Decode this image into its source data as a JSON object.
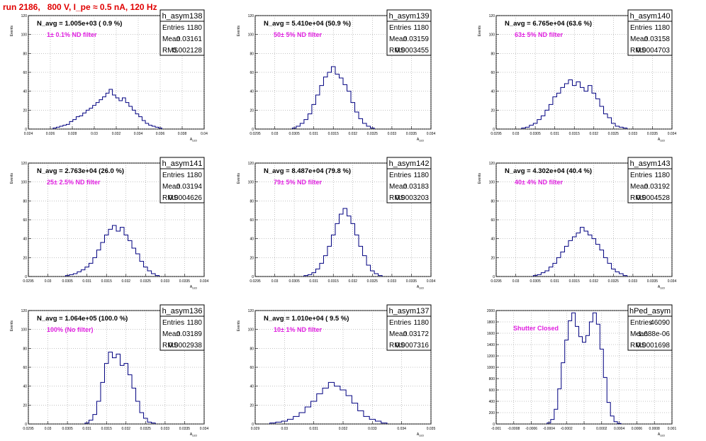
{
  "page": {
    "title": "run 2186,   800 V, I_pe ≈ 0.5 nA, 120 Hz"
  },
  "chart_data": [
    {
      "type": "histogram",
      "name": "h_asym138",
      "navg": "N_avg = 1.005e+03 ( 0.9 %)",
      "note": "1± 0.1% ND filter",
      "xlabel": "A_LED",
      "ylabel": "Events",
      "xlim": [
        0.024,
        0.04
      ],
      "ylim": [
        0,
        120
      ],
      "grid": true,
      "xticks": [
        "0.024",
        "0.026",
        "0.028",
        "0.03",
        "0.032",
        "0.034",
        "0.036",
        "0.038",
        "0.04"
      ],
      "yticks": [
        "0",
        "20",
        "40",
        "60",
        "80",
        "100",
        "120"
      ],
      "stats": {
        "Entries": "1180",
        "Mean": "0.03161",
        "RMS": "0.002128"
      },
      "bins": [
        [
          0.0264,
          1
        ],
        [
          0.0267,
          2
        ],
        [
          0.027,
          3
        ],
        [
          0.0273,
          4
        ],
        [
          0.0276,
          5
        ],
        [
          0.0279,
          8
        ],
        [
          0.0282,
          10
        ],
        [
          0.0285,
          13
        ],
        [
          0.0288,
          14
        ],
        [
          0.0291,
          17
        ],
        [
          0.0294,
          20
        ],
        [
          0.0297,
          22
        ],
        [
          0.03,
          25
        ],
        [
          0.0303,
          28
        ],
        [
          0.0306,
          31
        ],
        [
          0.0309,
          34
        ],
        [
          0.0312,
          38
        ],
        [
          0.0315,
          42
        ],
        [
          0.0318,
          36
        ],
        [
          0.0321,
          33
        ],
        [
          0.0324,
          30
        ],
        [
          0.0327,
          33
        ],
        [
          0.033,
          28
        ],
        [
          0.0333,
          24
        ],
        [
          0.0336,
          20
        ],
        [
          0.0339,
          16
        ],
        [
          0.0342,
          13
        ],
        [
          0.0345,
          9
        ],
        [
          0.0348,
          6
        ],
        [
          0.0351,
          4
        ],
        [
          0.0354,
          3
        ],
        [
          0.0357,
          2
        ],
        [
          0.036,
          1
        ]
      ]
    },
    {
      "type": "histogram",
      "name": "h_asym139",
      "navg": "N_avg = 5.410e+04 (50.9 %)",
      "note": "50± 5% ND filter",
      "xlabel": "A_LED",
      "ylabel": "Events",
      "xlim": [
        0.0295,
        0.034
      ],
      "ylim": [
        0,
        120
      ],
      "grid": true,
      "xticks": [
        "0.0295",
        "0.03",
        "0.0305",
        "0.031",
        "0.0315",
        "0.032",
        "0.0325",
        "0.033",
        "0.0335",
        "0.034"
      ],
      "yticks": [
        "0",
        "20",
        "40",
        "60",
        "80",
        "100",
        "120"
      ],
      "stats": {
        "Entries": "1180",
        "Mean": "0.03159",
        "RMS": "0.0003455"
      },
      "bins": [
        [
          0.0305,
          1
        ],
        [
          0.0306,
          3
        ],
        [
          0.0307,
          6
        ],
        [
          0.0308,
          10
        ],
        [
          0.0309,
          16
        ],
        [
          0.031,
          26
        ],
        [
          0.0311,
          36
        ],
        [
          0.0312,
          46
        ],
        [
          0.0313,
          55
        ],
        [
          0.0314,
          60
        ],
        [
          0.0315,
          66
        ],
        [
          0.0316,
          58
        ],
        [
          0.0317,
          54
        ],
        [
          0.0318,
          47
        ],
        [
          0.0319,
          40
        ],
        [
          0.032,
          28
        ],
        [
          0.0321,
          18
        ],
        [
          0.0322,
          11
        ],
        [
          0.0323,
          6
        ],
        [
          0.0324,
          3
        ],
        [
          0.0325,
          1
        ]
      ]
    },
    {
      "type": "histogram",
      "name": "h_asym140",
      "navg": "N_avg = 6.765e+04 (63.6 %)",
      "note": "63± 5% ND filter",
      "xlabel": "A_LED",
      "ylabel": "Events",
      "xlim": [
        0.0295,
        0.034
      ],
      "ylim": [
        0,
        120
      ],
      "grid": true,
      "xticks": [
        "0.0295",
        "0.03",
        "0.0305",
        "0.031",
        "0.0315",
        "0.032",
        "0.0325",
        "0.033",
        "0.0335",
        "0.034"
      ],
      "yticks": [
        "0",
        "20",
        "40",
        "60",
        "80",
        "100",
        "120"
      ],
      "stats": {
        "Entries": "1180",
        "Mean": "0.03158",
        "RMS": "0.0004703"
      },
      "bins": [
        [
          0.0302,
          1
        ],
        [
          0.0303,
          2
        ],
        [
          0.0304,
          4
        ],
        [
          0.0305,
          6
        ],
        [
          0.0306,
          10
        ],
        [
          0.0307,
          14
        ],
        [
          0.0308,
          20
        ],
        [
          0.0309,
          26
        ],
        [
          0.031,
          34
        ],
        [
          0.0311,
          38
        ],
        [
          0.0312,
          44
        ],
        [
          0.0313,
          48
        ],
        [
          0.0314,
          52
        ],
        [
          0.0315,
          46
        ],
        [
          0.0316,
          50
        ],
        [
          0.0317,
          44
        ],
        [
          0.0318,
          40
        ],
        [
          0.0319,
          46
        ],
        [
          0.032,
          38
        ],
        [
          0.0321,
          32
        ],
        [
          0.0322,
          24
        ],
        [
          0.0323,
          16
        ],
        [
          0.0324,
          12
        ],
        [
          0.0325,
          6
        ],
        [
          0.0326,
          3
        ],
        [
          0.0327,
          2
        ],
        [
          0.0328,
          1
        ]
      ]
    },
    {
      "type": "histogram",
      "name": "h_asym141",
      "navg": "N_avg = 2.763e+04 (26.0 %)",
      "note": "25± 2.5% ND filter",
      "xlabel": "A_LED",
      "ylabel": "Events",
      "xlim": [
        0.0295,
        0.034
      ],
      "ylim": [
        0,
        120
      ],
      "grid": true,
      "xticks": [
        "0.0295",
        "0.03",
        "0.0305",
        "0.031",
        "0.0315",
        "0.032",
        "0.0325",
        "0.033",
        "0.0335",
        "0.034"
      ],
      "yticks": [
        "0",
        "20",
        "40",
        "60",
        "80",
        "100",
        "120"
      ],
      "stats": {
        "Entries": "1180",
        "Mean": "0.03194",
        "RMS": "0.0004626"
      },
      "bins": [
        [
          0.0305,
          1
        ],
        [
          0.0306,
          2
        ],
        [
          0.0307,
          3
        ],
        [
          0.0308,
          5
        ],
        [
          0.0309,
          7
        ],
        [
          0.031,
          10
        ],
        [
          0.0311,
          14
        ],
        [
          0.0312,
          20
        ],
        [
          0.0313,
          28
        ],
        [
          0.0314,
          36
        ],
        [
          0.0315,
          44
        ],
        [
          0.0316,
          50
        ],
        [
          0.0317,
          54
        ],
        [
          0.0318,
          48
        ],
        [
          0.0319,
          52
        ],
        [
          0.032,
          44
        ],
        [
          0.0321,
          38
        ],
        [
          0.0322,
          30
        ],
        [
          0.0323,
          24
        ],
        [
          0.0324,
          16
        ],
        [
          0.0325,
          10
        ],
        [
          0.0326,
          6
        ],
        [
          0.0327,
          3
        ],
        [
          0.0328,
          1
        ]
      ]
    },
    {
      "type": "histogram",
      "name": "h_asym142",
      "navg": "N_avg = 8.487e+04 (79.8 %)",
      "note": "79± 5% ND filter",
      "xlabel": "A_LED",
      "ylabel": "Events",
      "xlim": [
        0.0295,
        0.034
      ],
      "ylim": [
        0,
        120
      ],
      "grid": true,
      "xticks": [
        "0.0295",
        "0.03",
        "0.0305",
        "0.031",
        "0.0315",
        "0.032",
        "0.0325",
        "0.033",
        "0.0335",
        "0.034"
      ],
      "yticks": [
        "0",
        "20",
        "40",
        "60",
        "80",
        "100",
        "120"
      ],
      "stats": {
        "Entries": "1180",
        "Mean": "0.03183",
        "RMS": "0.0003203"
      },
      "bins": [
        [
          0.0308,
          1
        ],
        [
          0.0309,
          2
        ],
        [
          0.031,
          4
        ],
        [
          0.0311,
          8
        ],
        [
          0.0312,
          14
        ],
        [
          0.0313,
          22
        ],
        [
          0.0314,
          32
        ],
        [
          0.0315,
          44
        ],
        [
          0.0316,
          56
        ],
        [
          0.0317,
          66
        ],
        [
          0.0318,
          72
        ],
        [
          0.0319,
          64
        ],
        [
          0.032,
          56
        ],
        [
          0.0321,
          44
        ],
        [
          0.0322,
          32
        ],
        [
          0.0323,
          22
        ],
        [
          0.0324,
          12
        ],
        [
          0.0325,
          6
        ],
        [
          0.0326,
          3
        ],
        [
          0.0327,
          1
        ]
      ]
    },
    {
      "type": "histogram",
      "name": "h_asym143",
      "navg": "N_avg = 4.302e+04 (40.4 %)",
      "note": "40± 4% ND filter",
      "xlabel": "A_LED",
      "ylabel": "Events",
      "xlim": [
        0.0295,
        0.034
      ],
      "ylim": [
        0,
        120
      ],
      "grid": true,
      "xticks": [
        "0.0295",
        "0.03",
        "0.0305",
        "0.031",
        "0.0315",
        "0.032",
        "0.0325",
        "0.033",
        "0.0335",
        "0.034"
      ],
      "yticks": [
        "0",
        "20",
        "40",
        "60",
        "80",
        "100",
        "120"
      ],
      "stats": {
        "Entries": "1180",
        "Mean": "0.03192",
        "RMS": "0.0004528"
      },
      "bins": [
        [
          0.0305,
          1
        ],
        [
          0.0306,
          2
        ],
        [
          0.0307,
          4
        ],
        [
          0.0308,
          6
        ],
        [
          0.0309,
          10
        ],
        [
          0.031,
          14
        ],
        [
          0.0311,
          20
        ],
        [
          0.0312,
          26
        ],
        [
          0.0313,
          32
        ],
        [
          0.0314,
          38
        ],
        [
          0.0315,
          42
        ],
        [
          0.0316,
          46
        ],
        [
          0.0317,
          52
        ],
        [
          0.0318,
          48
        ],
        [
          0.0319,
          44
        ],
        [
          0.032,
          40
        ],
        [
          0.0321,
          34
        ],
        [
          0.0322,
          28
        ],
        [
          0.0323,
          20
        ],
        [
          0.0324,
          14
        ],
        [
          0.0325,
          8
        ],
        [
          0.0326,
          5
        ],
        [
          0.0327,
          3
        ],
        [
          0.0328,
          1
        ]
      ]
    },
    {
      "type": "histogram",
      "name": "h_asym136",
      "navg": "N_avg = 1.064e+05 (100.0 %)",
      "note": "100% (No filter)",
      "xlabel": "A_LED",
      "ylabel": "Events",
      "xlim": [
        0.0295,
        0.034
      ],
      "ylim": [
        0,
        120
      ],
      "grid": true,
      "xticks": [
        "0.0295",
        "0.03",
        "0.0305",
        "0.031",
        "0.0315",
        "0.032",
        "0.0325",
        "0.033",
        "0.0335",
        "0.034"
      ],
      "yticks": [
        "0",
        "20",
        "40",
        "60",
        "80",
        "100",
        "120"
      ],
      "stats": {
        "Entries": "1180",
        "Mean": "0.03189",
        "RMS": "0.0002938"
      },
      "bins": [
        [
          0.031,
          1
        ],
        [
          0.0311,
          4
        ],
        [
          0.0312,
          10
        ],
        [
          0.0313,
          24
        ],
        [
          0.0314,
          44
        ],
        [
          0.0315,
          64
        ],
        [
          0.0316,
          76
        ],
        [
          0.0317,
          70
        ],
        [
          0.0318,
          74
        ],
        [
          0.0319,
          62
        ],
        [
          0.032,
          64
        ],
        [
          0.0321,
          52
        ],
        [
          0.0322,
          38
        ],
        [
          0.0323,
          24
        ],
        [
          0.0324,
          12
        ],
        [
          0.0325,
          6
        ],
        [
          0.0326,
          2
        ],
        [
          0.0327,
          1
        ]
      ]
    },
    {
      "type": "histogram",
      "name": "h_asym137",
      "navg": "N_avg = 1.010e+04 ( 9.5 %)",
      "note": "10± 1% ND filter",
      "xlabel": "A_LED",
      "ylabel": "Events",
      "xlim": [
        0.029,
        0.035
      ],
      "ylim": [
        0,
        120
      ],
      "grid": true,
      "xticks": [
        "0.029",
        "0.03",
        "0.031",
        "0.032",
        "0.033",
        "0.034",
        "0.035"
      ],
      "yticks": [
        "0",
        "20",
        "40",
        "60",
        "80",
        "100",
        "120"
      ],
      "stats": {
        "Entries": "1180",
        "Mean": "0.03172",
        "RMS": "0.0007316"
      },
      "bins": [
        [
          0.0296,
          1
        ],
        [
          0.0298,
          2
        ],
        [
          0.03,
          3
        ],
        [
          0.0302,
          5
        ],
        [
          0.0304,
          8
        ],
        [
          0.0306,
          12
        ],
        [
          0.0308,
          18
        ],
        [
          0.031,
          24
        ],
        [
          0.0312,
          32
        ],
        [
          0.0314,
          38
        ],
        [
          0.0316,
          44
        ],
        [
          0.0318,
          40
        ],
        [
          0.032,
          36
        ],
        [
          0.0322,
          30
        ],
        [
          0.0324,
          22
        ],
        [
          0.0326,
          14
        ],
        [
          0.0328,
          8
        ],
        [
          0.033,
          5
        ],
        [
          0.0332,
          3
        ],
        [
          0.0334,
          1
        ]
      ]
    },
    {
      "type": "histogram",
      "name": "hPed_asym",
      "navg": "",
      "note": "Shutter Closed",
      "xlabel": "A_LED",
      "ylabel": "",
      "xlim": [
        -0.001,
        0.001
      ],
      "ylim": [
        0,
        2000
      ],
      "grid": true,
      "xticks": [
        "-0.001",
        "-0.0008",
        "-0.0006",
        "-0.0004",
        "-0.0002",
        "0",
        "0.0002",
        "0.0004",
        "0.0006",
        "0.0008",
        "0.001"
      ],
      "yticks": [
        "0",
        "200",
        "400",
        "600",
        "800",
        "1000",
        "1200",
        "1400",
        "1600",
        "1800",
        "2000"
      ],
      "stats": {
        "Entries": "46090",
        "Mean": "-1.688e-06",
        "RMS": "0.0001698"
      },
      "bins": [
        [
          -0.0004,
          20
        ],
        [
          -0.00036,
          80
        ],
        [
          -0.00032,
          260
        ],
        [
          -0.00028,
          620
        ],
        [
          -0.00024,
          1080
        ],
        [
          -0.0002,
          1480
        ],
        [
          -0.00016,
          1820
        ],
        [
          -0.00012,
          1960
        ],
        [
          -8e-05,
          1720
        ],
        [
          -4e-05,
          1540
        ],
        [
          0.0,
          1440
        ],
        [
          4e-05,
          1560
        ],
        [
          8e-05,
          1800
        ],
        [
          0.00012,
          1960
        ],
        [
          0.00016,
          1760
        ],
        [
          0.0002,
          1320
        ],
        [
          0.00024,
          820
        ],
        [
          0.00028,
          380
        ],
        [
          0.00032,
          140
        ],
        [
          0.00036,
          40
        ],
        [
          0.0004,
          10
        ]
      ]
    }
  ]
}
